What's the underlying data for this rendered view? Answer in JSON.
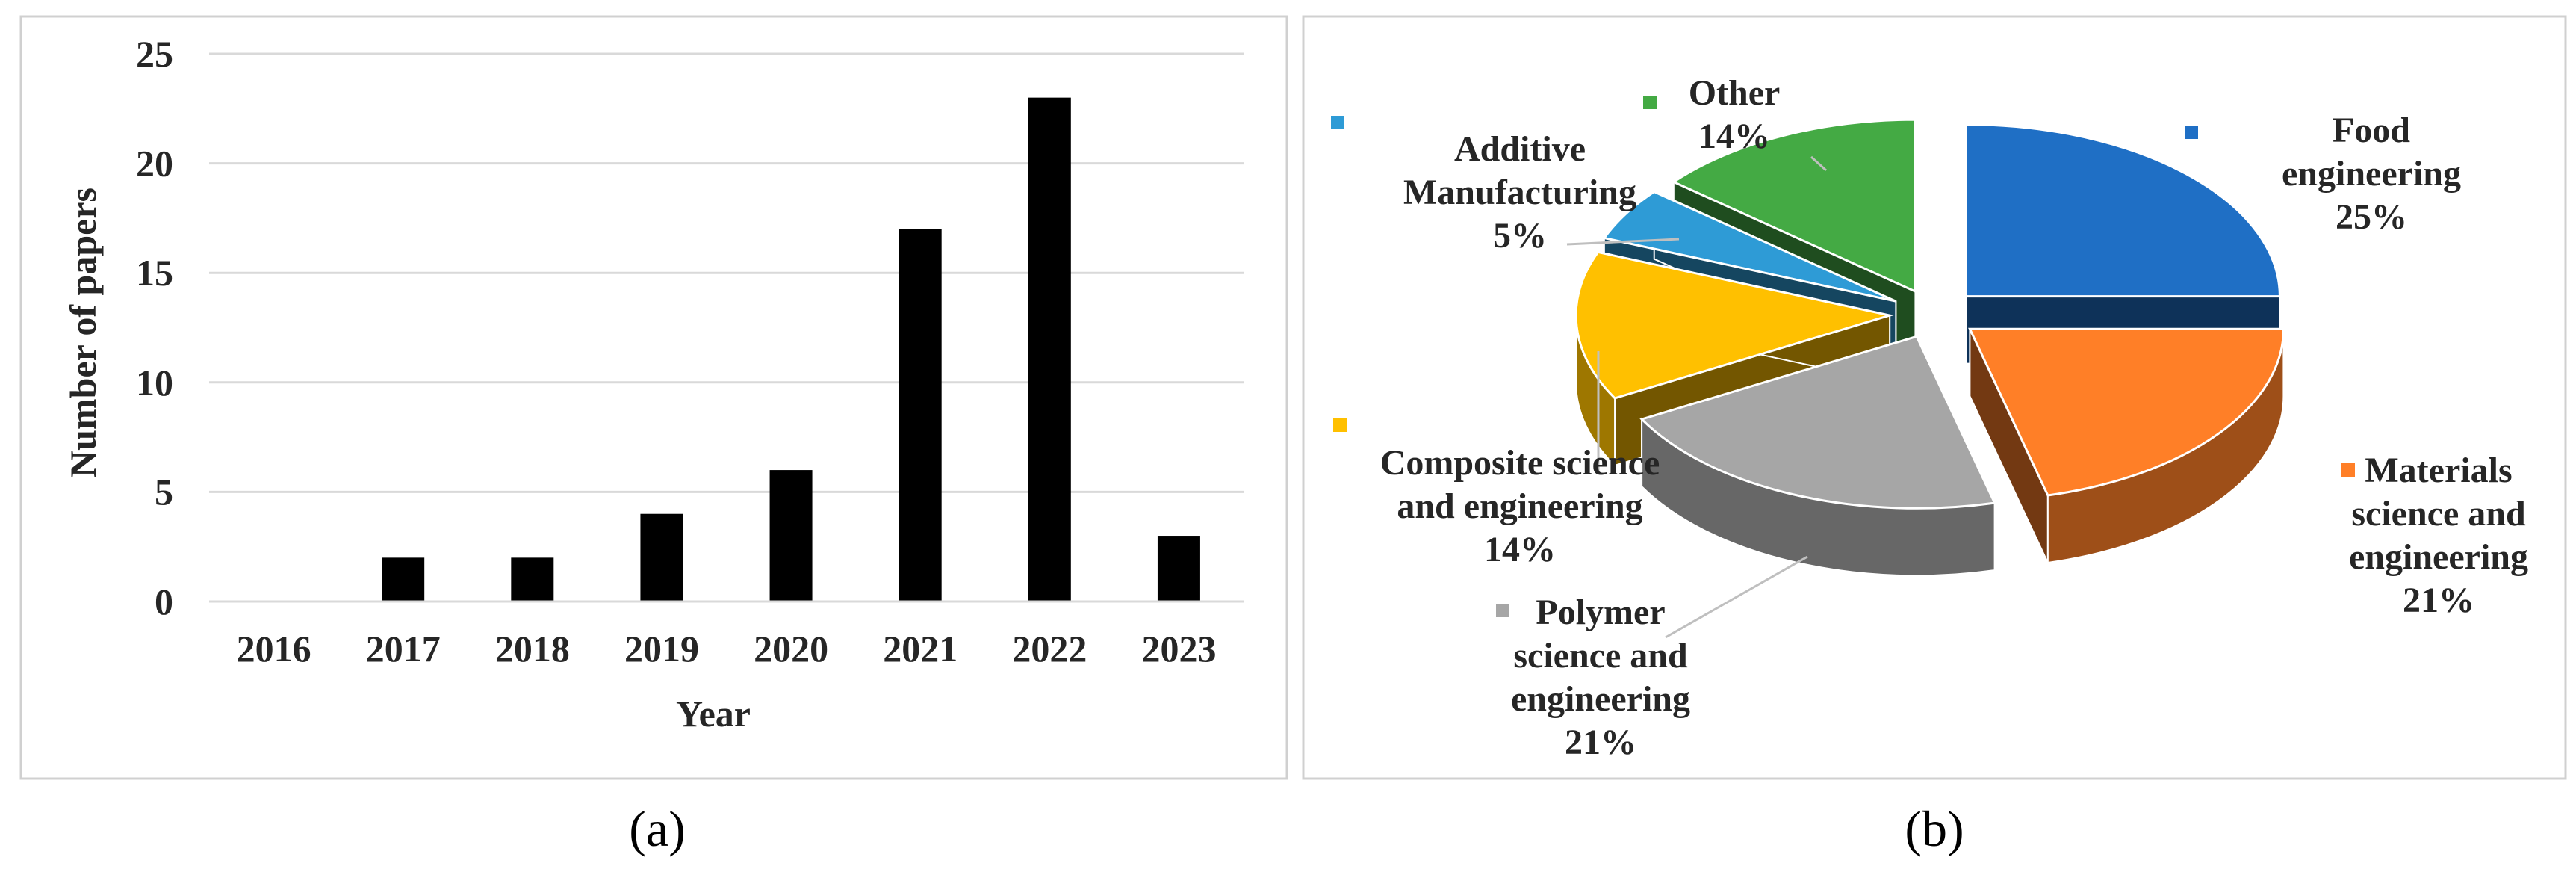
{
  "chart_data": [
    {
      "panel": "(a)",
      "type": "bar",
      "categories": [
        "2016",
        "2017",
        "2018",
        "2019",
        "2020",
        "2021",
        "2022",
        "2023"
      ],
      "values": [
        0,
        2,
        2,
        4,
        6,
        17,
        23,
        3
      ],
      "title": "",
      "xlabel": "Year",
      "ylabel": "Number of papers",
      "ylim": [
        0,
        25
      ],
      "yticks": [
        "0",
        "5",
        "10",
        "15",
        "20",
        "25"
      ],
      "grid": true,
      "bar_color": "#000000"
    },
    {
      "panel": "(b)",
      "type": "pie",
      "style": "3d-exploded",
      "slices": [
        {
          "label_lines": [
            "Food",
            "engineering"
          ],
          "pct_label": "25%",
          "value": 25,
          "color": "#1f6fc5"
        },
        {
          "label_lines": [
            "Materials",
            "science and",
            "engineering"
          ],
          "pct_label": "21%",
          "value": 21,
          "color": "#ff7f27"
        },
        {
          "label_lines": [
            "Polymer",
            "science and",
            "engineering"
          ],
          "pct_label": "21%",
          "value": 21,
          "color": "#a6a6a6"
        },
        {
          "label_lines": [
            "Composite science",
            "and engineering"
          ],
          "pct_label": "14%",
          "value": 14,
          "color": "#ffc000"
        },
        {
          "label_lines": [
            "Additive",
            "Manufacturing"
          ],
          "pct_label": "5%",
          "value": 5,
          "color": "#2e9bd6"
        },
        {
          "label_lines": [
            "Other"
          ],
          "pct_label": "14%",
          "value": 14,
          "color": "#44aa44"
        }
      ]
    }
  ],
  "captions": {
    "a": "(a)",
    "b": "(b)"
  },
  "colors": {
    "frame": "#d0d0d0",
    "grid": "#d9d9d9",
    "text": "#262626"
  }
}
